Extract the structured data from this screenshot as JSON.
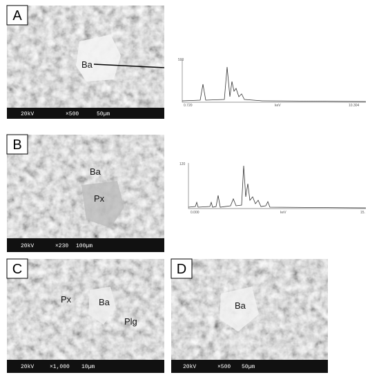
{
  "panels": [
    {
      "letter": "A",
      "labels": [
        "Ba"
      ],
      "scale": {
        "voltage": "20kV",
        "magnification": "×500",
        "bar": "50µm"
      },
      "spectrum": {
        "y_top": "500",
        "x_left": "0.720",
        "x_mid": "keV",
        "x_right": "10.304"
      }
    },
    {
      "letter": "B",
      "labels": [
        "Ba",
        "Px"
      ],
      "scale": {
        "voltage": "20kV",
        "magnification": "×230",
        "bar": "100µm"
      },
      "spectrum": {
        "y_top": "120",
        "x_left": "0.000",
        "x_mid": "keV",
        "x_right": "15."
      }
    },
    {
      "letter": "C",
      "labels": [
        "Px",
        "Ba",
        "Plg"
      ],
      "scale": {
        "voltage": "20kV",
        "magnification": "×1,000",
        "bar": "10µm"
      }
    },
    {
      "letter": "D",
      "labels": [
        "Ba"
      ],
      "scale": {
        "voltage": "20kV",
        "magnification": "×500",
        "bar": "50µm"
      }
    }
  ]
}
